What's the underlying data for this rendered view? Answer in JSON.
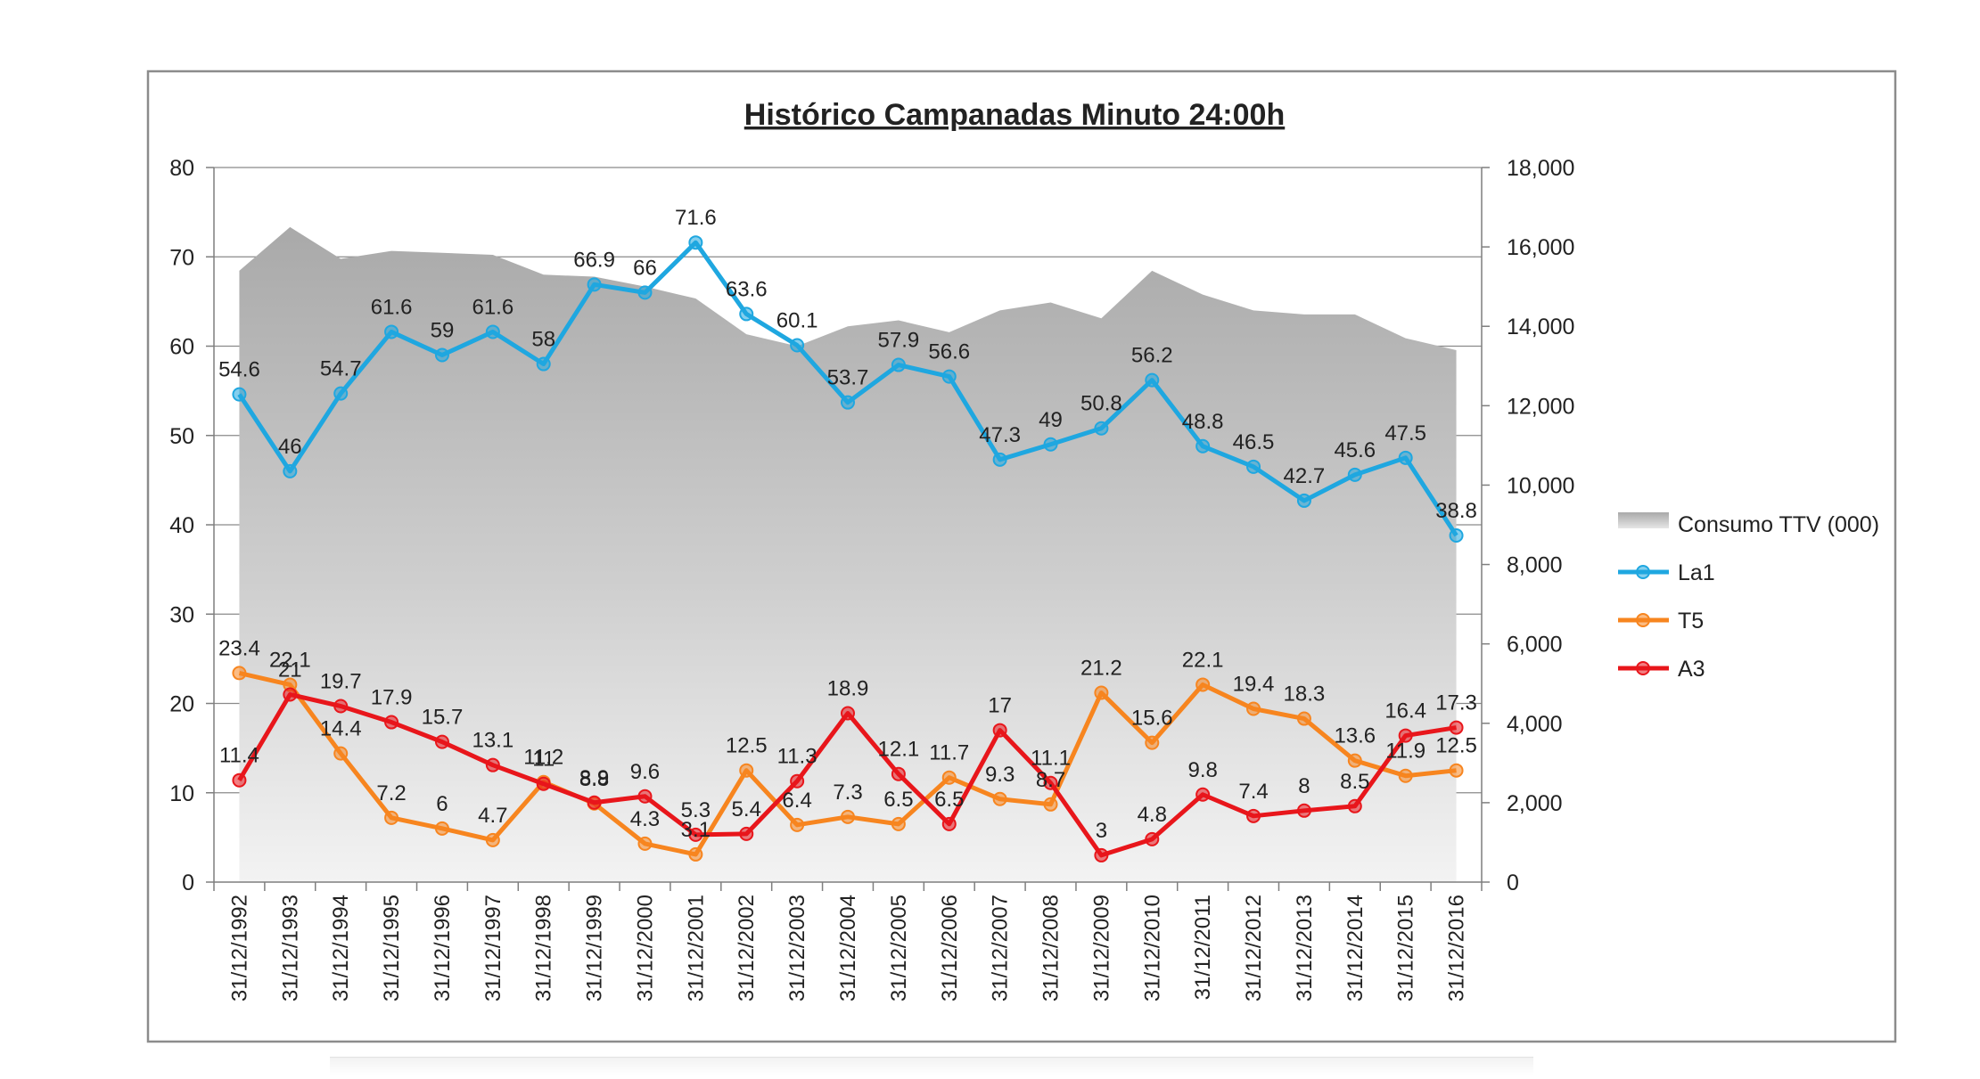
{
  "chart_data": {
    "type": "line",
    "title": "Histórico Campanadas Minuto 24:00h",
    "categories": [
      "31/12/1992",
      "31/12/1993",
      "31/12/1994",
      "31/12/1995",
      "31/12/1996",
      "31/12/1997",
      "31/12/1998",
      "31/12/1999",
      "31/12/2000",
      "31/12/2001",
      "31/12/2002",
      "31/12/2003",
      "31/12/2004",
      "31/12/2005",
      "31/12/2006",
      "31/12/2007",
      "31/12/2008",
      "31/12/2009",
      "31/12/2010",
      "31/12/2011",
      "31/12/2012",
      "31/12/2013",
      "31/12/2014",
      "31/12/2015",
      "31/12/2016"
    ],
    "ylim": [
      0,
      80
    ],
    "yticks": [
      "0",
      "10",
      "20",
      "30",
      "40",
      "50",
      "60",
      "70",
      "80"
    ],
    "y2lim": [
      0,
      18000
    ],
    "y2ticks": [
      "0",
      "2,000",
      "4,000",
      "6,000",
      "8,000",
      "10,000",
      "12,000",
      "14,000",
      "16,000",
      "18,000"
    ],
    "legend_position": "right",
    "area": {
      "name": "Consumo TTV (000)",
      "axis": "right",
      "color": "#a6a6a6",
      "values": [
        15400,
        16500,
        15700,
        15900,
        15850,
        15800,
        15300,
        15250,
        15000,
        14700,
        13800,
        13500,
        14000,
        14150,
        13850,
        14400,
        14600,
        14200,
        15400,
        14800,
        14400,
        14300,
        14300,
        13700,
        13400
      ]
    },
    "series": [
      {
        "name": "La1",
        "color": "#1fa7e0",
        "values": [
          54.6,
          46,
          54.7,
          61.6,
          59,
          61.6,
          58,
          66.9,
          66,
          71.6,
          63.6,
          60.1,
          53.7,
          57.9,
          56.6,
          47.3,
          49,
          50.8,
          56.2,
          48.8,
          46.5,
          42.7,
          45.6,
          47.5,
          38.8
        ],
        "labels": [
          "54.6",
          "46",
          "54.7",
          "61.6",
          "59",
          "61.6",
          "58",
          "66.9",
          "66",
          "71.6",
          "63.6",
          "60.1",
          "53.7",
          "57.9",
          "56.6",
          "47.3",
          "49",
          "50.8",
          "56.2",
          "48.8",
          "46.5",
          "42.7",
          "45.6",
          "47.5",
          "38.8"
        ]
      },
      {
        "name": "T5",
        "color": "#f7851f",
        "values": [
          23.4,
          22.1,
          14.4,
          7.2,
          6,
          4.7,
          11.2,
          8.8,
          4.3,
          3.1,
          12.5,
          6.4,
          7.3,
          6.5,
          11.7,
          9.3,
          8.7,
          21.2,
          15.6,
          22.1,
          19.4,
          18.3,
          13.6,
          11.9,
          12.5
        ],
        "labels": [
          "23.4",
          "22.1",
          "14.4",
          "7.2",
          "6",
          "4.7",
          "11.2",
          "8.8",
          "4.3",
          "3.1",
          "12.5",
          "6.4",
          "7.3",
          "6.5",
          "11.7",
          "9.3",
          "8.7",
          "21.2",
          "15.6",
          "22.1",
          "19.4",
          "18.3",
          "13.6",
          "11.9",
          "12.5"
        ]
      },
      {
        "name": "A3",
        "color": "#e8161b",
        "values": [
          11.4,
          21,
          19.7,
          17.9,
          15.7,
          13.1,
          11,
          8.9,
          9.6,
          5.3,
          5.4,
          11.3,
          18.9,
          12.1,
          6.5,
          17,
          11.1,
          3,
          4.8,
          9.8,
          7.4,
          8,
          8.5,
          16.4,
          17.3
        ],
        "labels": [
          "11.4",
          "21",
          "19.7",
          "17.9",
          "15.7",
          "13.1",
          "11",
          "8.9",
          "9.6",
          "5.3",
          "5.4",
          "11.3",
          "18.9",
          "12.1",
          "6.5",
          "17",
          "11.1",
          "3",
          "4.8",
          "9.8",
          "7.4",
          "8",
          "8.5",
          "16.4",
          "17.3"
        ]
      }
    ]
  }
}
